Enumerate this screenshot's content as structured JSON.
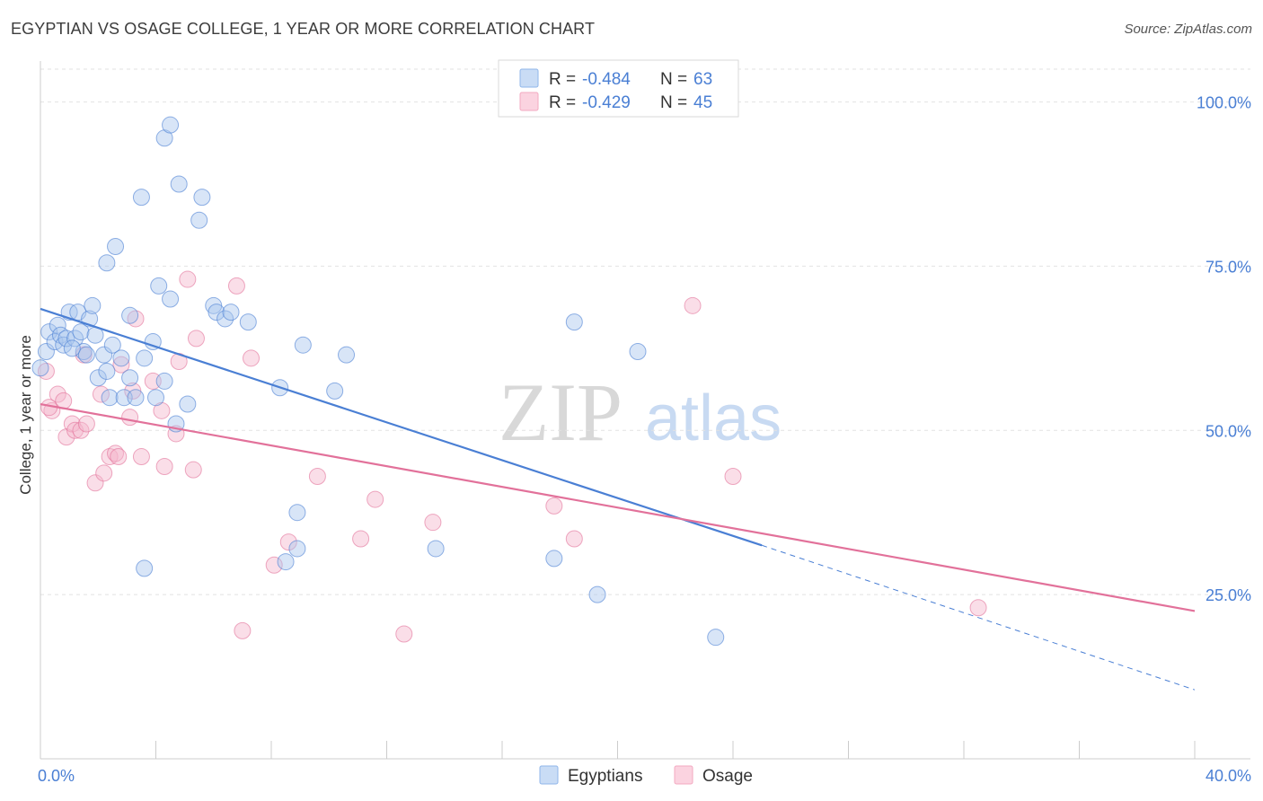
{
  "header": {
    "title": "EGYPTIAN VS OSAGE COLLEGE, 1 YEAR OR MORE CORRELATION CHART",
    "source": "Source: ZipAtlas.com"
  },
  "watermark": {
    "zip": "ZIP",
    "atlas": "atlas"
  },
  "legend": {
    "r_label": "R =",
    "n_label": "N =",
    "entries": [
      {
        "r": "-0.484",
        "n": "63",
        "color": "#8fb6ea"
      },
      {
        "r": "-0.429",
        "n": "45",
        "color": "#f3a9c1"
      }
    ]
  },
  "bottom_legend": [
    "Egyptians",
    "Osage"
  ],
  "chart_data": {
    "type": "scatter",
    "title": "EGYPTIAN VS OSAGE COLLEGE, 1 YEAR OR MORE CORRELATION CHART",
    "xlabel": "",
    "ylabel": "College, 1 year or more",
    "xlim": [
      0,
      40
    ],
    "ylim": [
      0,
      105
    ],
    "x_tick_labels": [
      "0.0%",
      "40.0%"
    ],
    "y_ticks": [
      25,
      50,
      75,
      100
    ],
    "y_tick_labels": [
      "25.0%",
      "50.0%",
      "75.0%",
      "100.0%"
    ],
    "grid": true,
    "series": [
      {
        "name": "Egyptians",
        "color": "#4a7fd4",
        "fill": "#a8c6ee",
        "r": -0.484,
        "n": 63,
        "trend": {
          "x": [
            0,
            25
          ],
          "y": [
            68.5,
            32.5
          ],
          "dashed_to": [
            40,
            10.5
          ]
        },
        "points": [
          [
            0.2,
            62
          ],
          [
            0.3,
            65
          ],
          [
            0.5,
            63.5
          ],
          [
            0.6,
            66
          ],
          [
            0.7,
            64.5
          ],
          [
            0.8,
            63
          ],
          [
            0.9,
            64
          ],
          [
            1.0,
            68
          ],
          [
            1.2,
            64
          ],
          [
            1.3,
            68
          ],
          [
            1.4,
            65
          ],
          [
            1.5,
            62
          ],
          [
            1.6,
            61.5
          ],
          [
            1.7,
            67
          ],
          [
            1.8,
            69
          ],
          [
            1.9,
            64.5
          ],
          [
            2.0,
            58
          ],
          [
            2.2,
            61.5
          ],
          [
            2.3,
            59
          ],
          [
            2.4,
            55
          ],
          [
            2.5,
            63
          ],
          [
            2.6,
            78
          ],
          [
            2.3,
            75.5
          ],
          [
            2.8,
            61
          ],
          [
            2.9,
            55
          ],
          [
            3.1,
            58
          ],
          [
            3.1,
            67.5
          ],
          [
            3.3,
            55
          ],
          [
            3.6,
            61
          ],
          [
            3.9,
            63.5
          ],
          [
            4.0,
            55
          ],
          [
            4.1,
            72
          ],
          [
            4.3,
            57.5
          ],
          [
            4.5,
            70
          ],
          [
            3.6,
            29
          ],
          [
            3.5,
            85.5
          ],
          [
            4.3,
            94.5
          ],
          [
            4.5,
            96.5
          ],
          [
            4.8,
            87.5
          ],
          [
            4.7,
            51
          ],
          [
            5.1,
            54
          ],
          [
            5.5,
            82
          ],
          [
            5.6,
            85.5
          ],
          [
            6.0,
            69
          ],
          [
            6.1,
            68
          ],
          [
            6.4,
            67
          ],
          [
            6.6,
            68
          ],
          [
            7.2,
            66.5
          ],
          [
            8.3,
            56.5
          ],
          [
            8.5,
            30
          ],
          [
            8.9,
            37.5
          ],
          [
            8.9,
            32
          ],
          [
            9.1,
            63
          ],
          [
            10.2,
            56
          ],
          [
            10.6,
            61.5
          ],
          [
            13.7,
            32
          ],
          [
            17.8,
            30.5
          ],
          [
            18.5,
            66.5
          ],
          [
            19.3,
            25
          ],
          [
            20.7,
            62
          ],
          [
            23.4,
            18.5
          ],
          [
            0.0,
            59.5
          ],
          [
            1.1,
            62.5
          ]
        ]
      },
      {
        "name": "Osage",
        "color": "#e2719a",
        "fill": "#f4b6cb",
        "r": -0.429,
        "n": 45,
        "trend": {
          "x": [
            0,
            40
          ],
          "y": [
            54,
            22.5
          ]
        },
        "points": [
          [
            0.2,
            59
          ],
          [
            0.4,
            53
          ],
          [
            0.6,
            55.5
          ],
          [
            0.8,
            54.5
          ],
          [
            0.9,
            49
          ],
          [
            1.1,
            51
          ],
          [
            1.2,
            50
          ],
          [
            1.4,
            50
          ],
          [
            1.6,
            51
          ],
          [
            1.9,
            42
          ],
          [
            2.1,
            55.5
          ],
          [
            2.2,
            43.5
          ],
          [
            2.4,
            46
          ],
          [
            2.6,
            46.5
          ],
          [
            2.7,
            46
          ],
          [
            2.8,
            60
          ],
          [
            3.1,
            52
          ],
          [
            3.2,
            56
          ],
          [
            3.3,
            67
          ],
          [
            3.5,
            46
          ],
          [
            3.9,
            57.5
          ],
          [
            4.2,
            53
          ],
          [
            4.3,
            44.5
          ],
          [
            4.7,
            49.5
          ],
          [
            4.8,
            60.5
          ],
          [
            5.1,
            73
          ],
          [
            5.3,
            44
          ],
          [
            5.4,
            64
          ],
          [
            6.8,
            72
          ],
          [
            7.0,
            19.5
          ],
          [
            7.3,
            61
          ],
          [
            8.1,
            29.5
          ],
          [
            8.6,
            33
          ],
          [
            9.6,
            43
          ],
          [
            11.1,
            33.5
          ],
          [
            11.6,
            39.5
          ],
          [
            12.6,
            19
          ],
          [
            13.6,
            36
          ],
          [
            17.8,
            38.5
          ],
          [
            18.5,
            33.5
          ],
          [
            22.6,
            69
          ],
          [
            24.0,
            43
          ],
          [
            32.5,
            23
          ],
          [
            1.5,
            61.5
          ],
          [
            0.3,
            53.5
          ]
        ]
      }
    ]
  }
}
